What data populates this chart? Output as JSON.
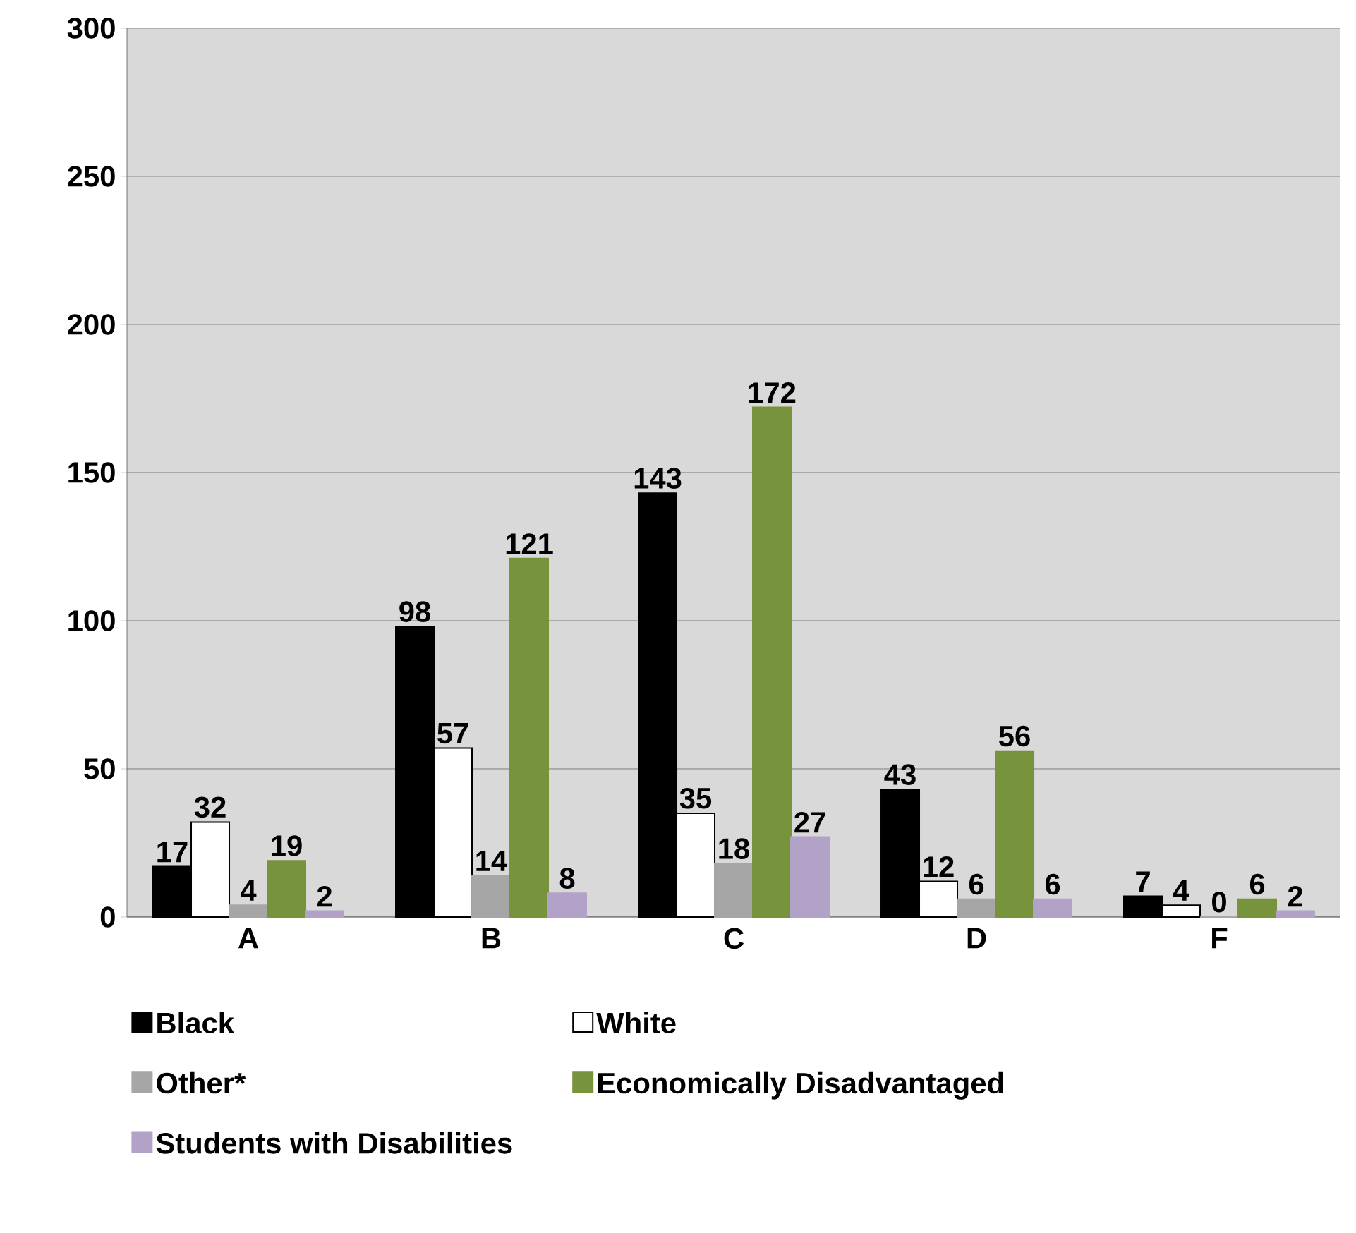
{
  "chart_data": {
    "type": "bar",
    "categories": [
      "A",
      "B",
      "C",
      "D",
      "F"
    ],
    "series": [
      {
        "name": "Black",
        "color": "#000000",
        "values": [
          17,
          98,
          143,
          43,
          7
        ]
      },
      {
        "name": "White",
        "color": "#ffffff",
        "values": [
          32,
          57,
          35,
          12,
          4
        ]
      },
      {
        "name": "Other*",
        "color": "#a6a6a6",
        "values": [
          4,
          14,
          18,
          6,
          0
        ]
      },
      {
        "name": "Economically Disadvantaged",
        "color": "#77933c",
        "values": [
          19,
          121,
          172,
          56,
          6
        ]
      },
      {
        "name": "Students with Disabilities",
        "color": "#b3a2c7",
        "values": [
          2,
          8,
          27,
          6,
          2
        ]
      }
    ],
    "ylim": [
      0,
      300
    ],
    "yticks": [
      0,
      50,
      100,
      150,
      200,
      250,
      300
    ],
    "grid": "y",
    "legend": "bottom",
    "data_labels": true
  }
}
